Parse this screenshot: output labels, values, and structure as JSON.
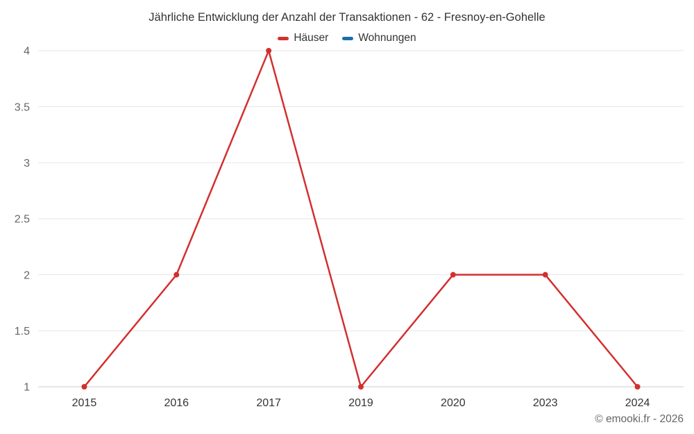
{
  "title": "Jährliche Entwicklung der Anzahl der Transaktionen - 62 - Fresnoy-en-Gohelle",
  "legend": [
    {
      "label": "Häuser",
      "color": "#d32f2f"
    },
    {
      "label": "Wohnungen",
      "color": "#1a6fa8"
    }
  ],
  "footer": "© emooki.fr - 2026",
  "chart_data": {
    "type": "line",
    "title": "Jährliche Entwicklung der Anzahl der Transaktionen - 62 - Fresnoy-en-Gohelle",
    "categories": [
      "2015",
      "2016",
      "2017",
      "2019",
      "2020",
      "2023",
      "2024"
    ],
    "series": [
      {
        "name": "Häuser",
        "color": "#d32f2f",
        "values": [
          1,
          2,
          4,
          1,
          2,
          2,
          1
        ]
      },
      {
        "name": "Wohnungen",
        "color": "#1a6fa8",
        "values": []
      }
    ],
    "xlabel": "",
    "ylabel": "",
    "ylim": [
      1,
      4
    ],
    "yticks": [
      1,
      1.5,
      2,
      2.5,
      3,
      3.5,
      4
    ],
    "grid": true,
    "legend_position": "top",
    "grid_color": "#e6e6e6",
    "axis_line_color": "#cccccc",
    "ytick_color": "#666666",
    "xtick_color": "#333333"
  }
}
